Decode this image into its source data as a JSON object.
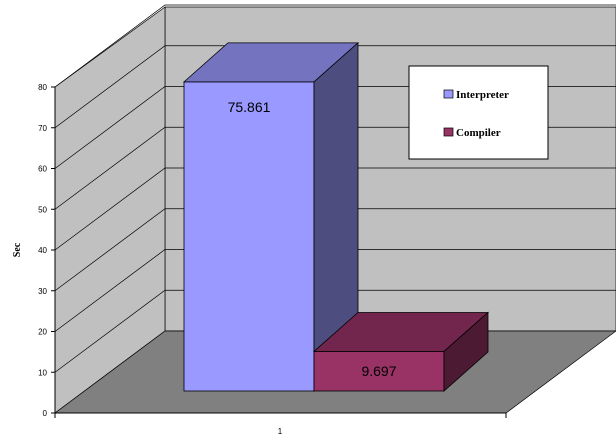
{
  "chart_data": {
    "type": "bar",
    "categories": [
      "1"
    ],
    "series": [
      {
        "name": "Interpreter",
        "values": [
          75.861
        ],
        "color": "#9999ff"
      },
      {
        "name": "Compiler",
        "values": [
          9.697
        ],
        "color": "#993366"
      }
    ],
    "data_labels": [
      "75.861",
      "9.697"
    ],
    "ylabel": "Sec",
    "ylim": [
      0,
      80
    ],
    "yticks": [
      0,
      10,
      20,
      30,
      40,
      50,
      60,
      70,
      80
    ],
    "grid": true,
    "legend": "top-right",
    "style": "3d-column",
    "wall_color": "#c0c0c0",
    "floor_color": "#808080"
  }
}
